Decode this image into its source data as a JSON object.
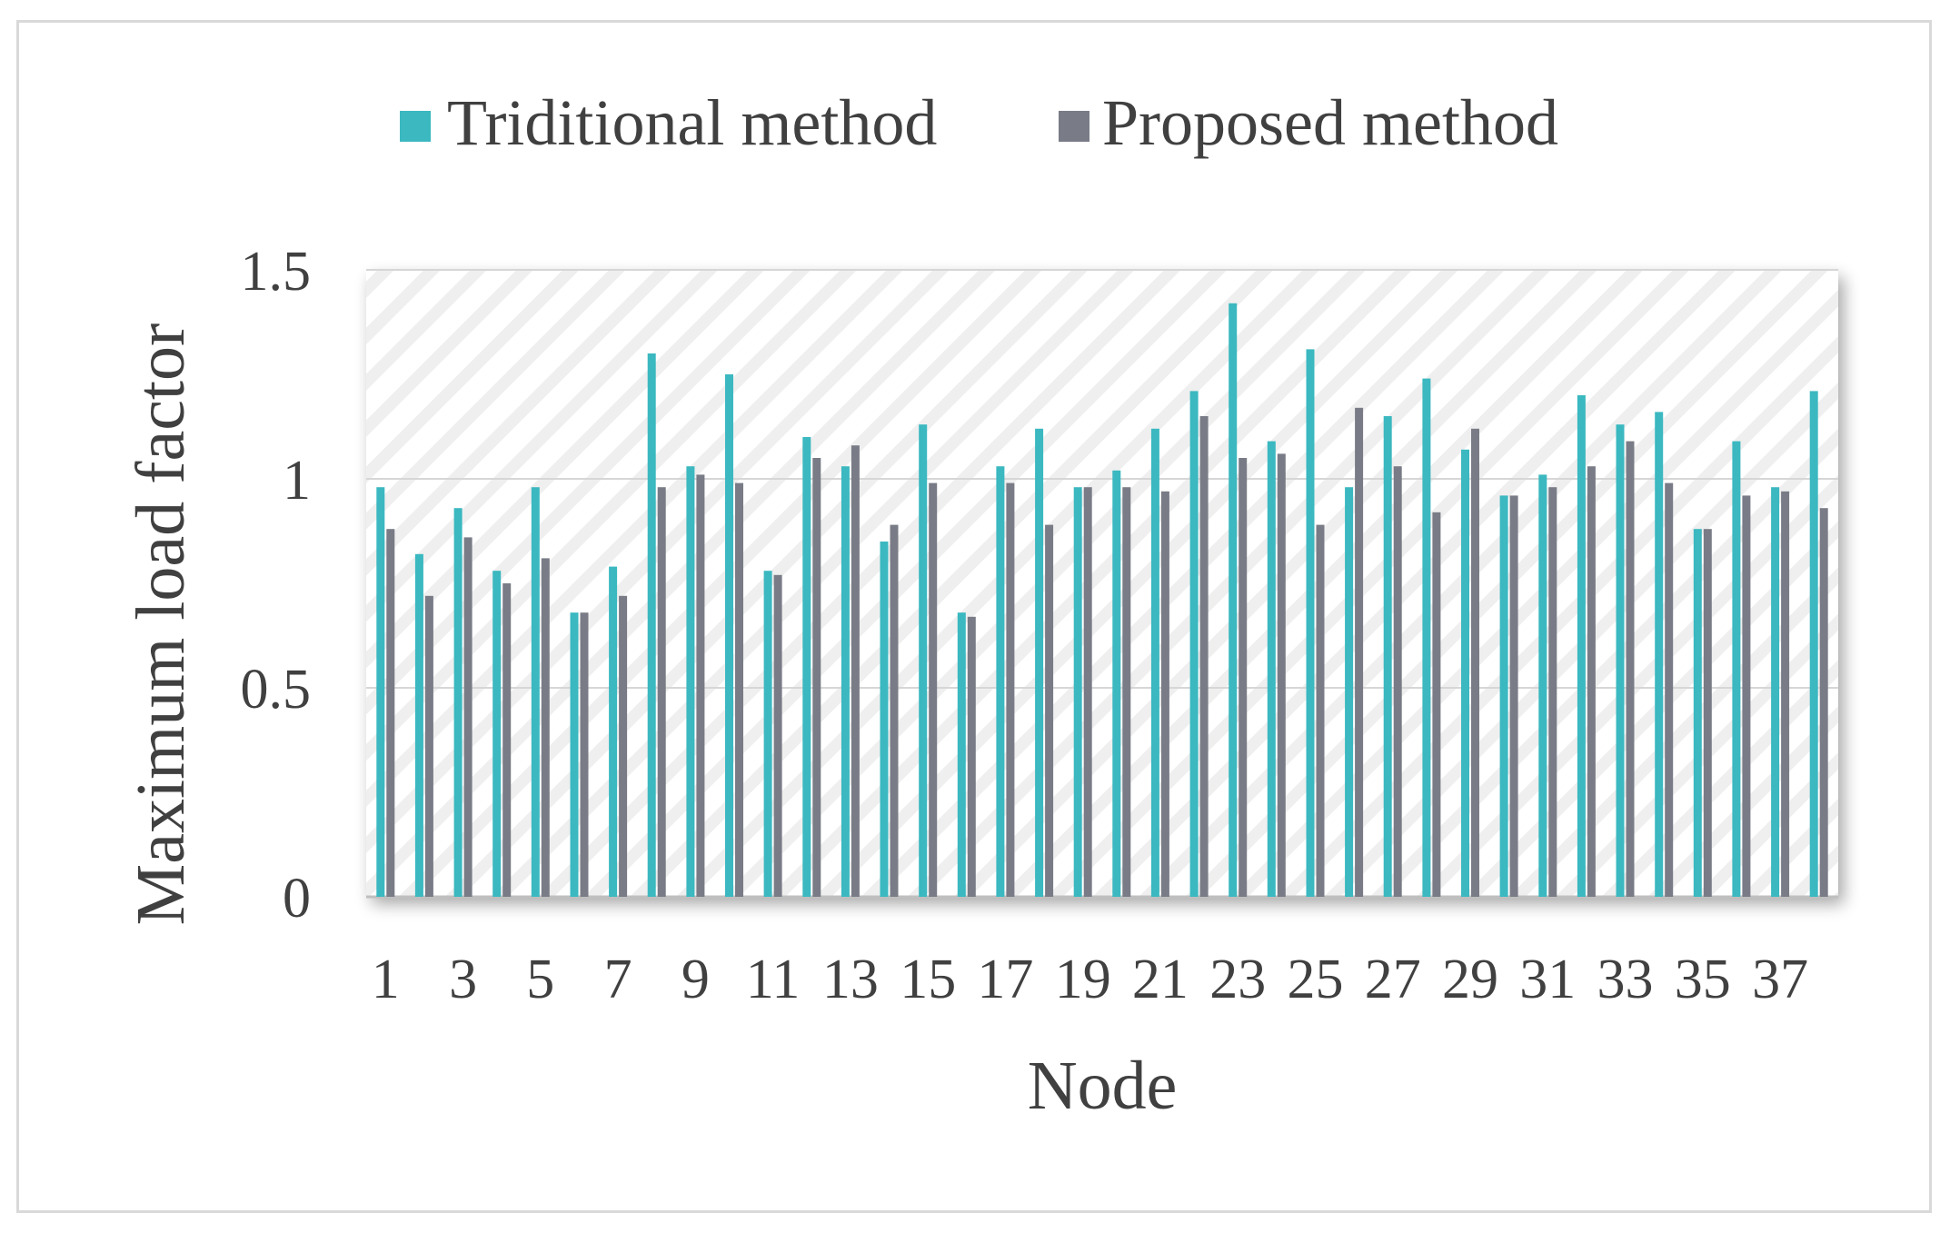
{
  "chart_data": {
    "type": "bar",
    "title": "",
    "xlabel": "Node",
    "ylabel": "Maximum load factor",
    "ylim": [
      0,
      1.5
    ],
    "yticks": [
      "0",
      "0.5",
      "1",
      "1.5"
    ],
    "gridlines": true,
    "legend_position": "top",
    "categories": [
      "1",
      "2",
      "3",
      "4",
      "5",
      "6",
      "7",
      "8",
      "9",
      "10",
      "11",
      "12",
      "13",
      "14",
      "15",
      "16",
      "17",
      "18",
      "19",
      "20",
      "21",
      "22",
      "23",
      "24",
      "25",
      "26",
      "27",
      "28",
      "29",
      "30",
      "31",
      "32",
      "33",
      "34",
      "35",
      "36",
      "37",
      "38"
    ],
    "xtick_labels": [
      "1",
      "3",
      "5",
      "7",
      "9",
      "11",
      "13",
      "15",
      "17",
      "19",
      "21",
      "23",
      "25",
      "27",
      "29",
      "31",
      "33",
      "35",
      "37"
    ],
    "series": [
      {
        "name": "Triditional method",
        "color": "#3bb8c0",
        "values": [
          0.98,
          0.82,
          0.93,
          0.78,
          0.98,
          0.68,
          0.79,
          1.3,
          1.03,
          1.25,
          0.78,
          1.1,
          1.03,
          0.85,
          1.13,
          0.68,
          1.03,
          1.12,
          0.98,
          1.02,
          1.12,
          1.21,
          1.42,
          1.09,
          1.31,
          0.98,
          1.15,
          1.24,
          1.07,
          0.96,
          1.01,
          1.2,
          1.13,
          1.16,
          0.88,
          1.09,
          0.98,
          1.21
        ]
      },
      {
        "name": "Proposed method",
        "color": "#797c86",
        "values": [
          0.88,
          0.72,
          0.86,
          0.75,
          0.81,
          0.68,
          0.72,
          0.98,
          1.01,
          0.99,
          0.77,
          1.05,
          1.08,
          0.89,
          0.99,
          0.67,
          0.99,
          0.89,
          0.98,
          0.98,
          0.97,
          1.15,
          1.05,
          1.06,
          0.89,
          1.17,
          1.03,
          0.92,
          1.12,
          0.96,
          0.98,
          1.03,
          1.09,
          0.99,
          0.88,
          0.96,
          0.97,
          0.93
        ]
      }
    ]
  }
}
